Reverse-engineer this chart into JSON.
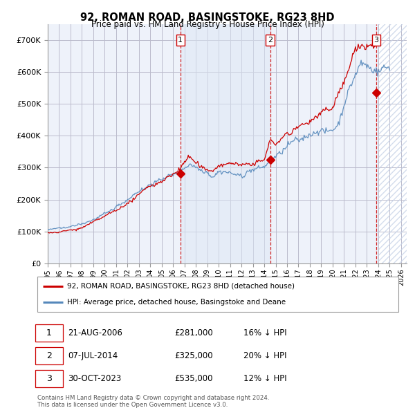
{
  "title": "92, ROMAN ROAD, BASINGSTOKE, RG23 8HD",
  "subtitle": "Price paid vs. HM Land Registry's House Price Index (HPI)",
  "legend_label_red": "92, ROMAN ROAD, BASINGSTOKE, RG23 8HD (detached house)",
  "legend_label_blue": "HPI: Average price, detached house, Basingstoke and Deane",
  "footer": "Contains HM Land Registry data © Crown copyright and database right 2024.\nThis data is licensed under the Open Government Licence v3.0.",
  "transactions": [
    {
      "num": 1,
      "date": "21-AUG-2006",
      "price": 281000,
      "hpi_diff": "16% ↓ HPI",
      "x_year": 2006.64
    },
    {
      "num": 2,
      "date": "07-JUL-2014",
      "price": 325000,
      "hpi_diff": "20% ↓ HPI",
      "x_year": 2014.52
    },
    {
      "num": 3,
      "date": "30-OCT-2023",
      "price": 535000,
      "hpi_diff": "12% ↓ HPI",
      "x_year": 2023.83
    }
  ],
  "ylim": [
    0,
    750000
  ],
  "xlim_start": 1995.0,
  "xlim_end": 2026.5,
  "yticks": [
    0,
    100000,
    200000,
    300000,
    400000,
    500000,
    600000,
    700000
  ],
  "ytick_labels": [
    "£0",
    "£100K",
    "£200K",
    "£300K",
    "£400K",
    "£500K",
    "£600K",
    "£700K"
  ],
  "xticks": [
    1995,
    1996,
    1997,
    1998,
    1999,
    2000,
    2001,
    2002,
    2003,
    2004,
    2005,
    2006,
    2007,
    2008,
    2009,
    2010,
    2011,
    2012,
    2013,
    2014,
    2015,
    2016,
    2017,
    2018,
    2019,
    2020,
    2021,
    2022,
    2023,
    2024,
    2025,
    2026
  ],
  "color_red": "#cc0000",
  "color_blue": "#5588bb",
  "color_blue_fill": "#dde8f5",
  "color_vline": "#cc0000",
  "bg_color": "#eef2fa",
  "hatch_color": "#c8d4e8",
  "grid_color": "#bbbbcc"
}
